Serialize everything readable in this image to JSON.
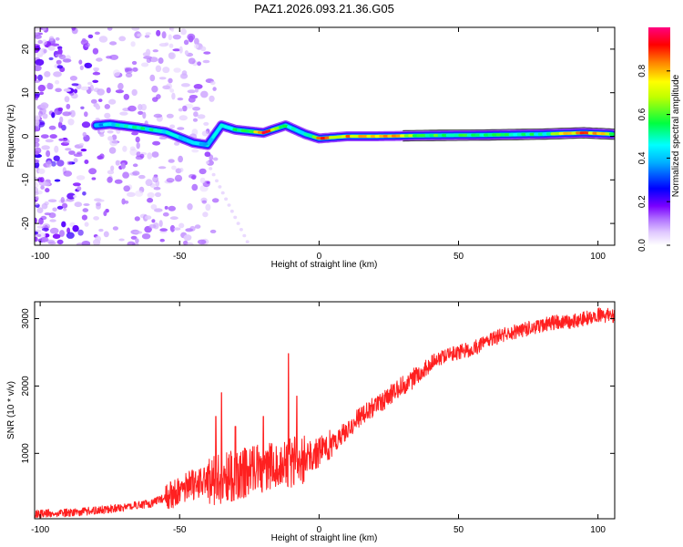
{
  "title": "PAZ1.2026.093.21.36.G05",
  "chart_data": [
    {
      "type": "heatmap",
      "name": "spectrogram",
      "xlabel": "Height of straight line (km)",
      "ylabel": "Frequency (Hz)",
      "xlim": [
        -102,
        106
      ],
      "ylim": [
        -25,
        25
      ],
      "xticks": [
        -100,
        -50,
        0,
        50,
        100
      ],
      "yticks": [
        -20,
        -10,
        0,
        10,
        20
      ],
      "colorbar": {
        "label": "Normalized spectral amplitude",
        "range": [
          0,
          1
        ],
        "ticks": [
          0.0,
          0.2,
          0.4,
          0.6,
          0.8
        ],
        "colors": [
          "#ffffff",
          "#c080ff",
          "#7a00ff",
          "#0000ff",
          "#00ffff",
          "#00ff00",
          "#ffff00",
          "#ff8000",
          "#ff0000",
          "#ff00a0"
        ]
      },
      "ridge": {
        "description_points": [
          {
            "x": -80,
            "f": 2.5,
            "amp": 0.35
          },
          {
            "x": -75,
            "f": 2.8,
            "amp": 0.45
          },
          {
            "x": -65,
            "f": 2.0,
            "amp": 0.5
          },
          {
            "x": -55,
            "f": 1.0,
            "amp": 0.45
          },
          {
            "x": -45,
            "f": -1.5,
            "amp": 0.4
          },
          {
            "x": -40,
            "f": -2.0,
            "amp": 0.4
          },
          {
            "x": -35,
            "f": 2.5,
            "amp": 0.45
          },
          {
            "x": -30,
            "f": 1.5,
            "amp": 0.5
          },
          {
            "x": -20,
            "f": 0.8,
            "amp": 0.85
          },
          {
            "x": -12,
            "f": 2.5,
            "amp": 0.5
          },
          {
            "x": -5,
            "f": 0.5,
            "amp": 0.45
          },
          {
            "x": 0,
            "f": -0.5,
            "amp": 0.8
          },
          {
            "x": 10,
            "f": 0.0,
            "amp": 0.8
          },
          {
            "x": 20,
            "f": 0.0,
            "amp": 0.85
          },
          {
            "x": 40,
            "f": 0.2,
            "amp": 0.55
          },
          {
            "x": 60,
            "f": 0.3,
            "amp": 0.55
          },
          {
            "x": 80,
            "f": 0.5,
            "amp": 0.5
          },
          {
            "x": 95,
            "f": 0.8,
            "amp": 0.9
          },
          {
            "x": 105,
            "f": 0.5,
            "amp": 0.6
          }
        ]
      }
    },
    {
      "type": "line",
      "name": "snr",
      "xlabel": "Height of straight line (km)",
      "ylabel": "SNR (10 * v/v)",
      "xlim": [
        -102,
        106
      ],
      "ylim": [
        30,
        3250
      ],
      "xticks": [
        -100,
        -50,
        0,
        50,
        100
      ],
      "yticks": [
        1000,
        2000,
        3000
      ],
      "color": "#ff2020",
      "series": [
        {
          "name": "SNR",
          "x": [
            -102,
            -90,
            -80,
            -70,
            -60,
            -55,
            -50,
            -45,
            -40,
            -35,
            -30,
            -25,
            -20,
            -15,
            -10,
            -5,
            0,
            5,
            10,
            15,
            20,
            25,
            30,
            35,
            40,
            45,
            50,
            55,
            60,
            65,
            70,
            75,
            80,
            85,
            90,
            95,
            100,
            106
          ],
          "y": [
            100,
            120,
            150,
            200,
            260,
            350,
            450,
            550,
            650,
            700,
            750,
            800,
            850,
            900,
            950,
            1000,
            1050,
            1150,
            1350,
            1550,
            1700,
            1850,
            2000,
            2150,
            2350,
            2450,
            2500,
            2550,
            2650,
            2750,
            2800,
            2850,
            2900,
            2950,
            2950,
            3000,
            3050,
            3050
          ],
          "noise_envelope": [
            {
              "x": -37,
              "peak": 1550
            },
            {
              "x": -35,
              "peak": 1900
            },
            {
              "x": -30,
              "peak": 1400
            },
            {
              "x": -20,
              "peak": 1550
            },
            {
              "x": -11,
              "peak": 2480
            },
            {
              "x": -8,
              "peak": 1850
            }
          ]
        }
      ]
    }
  ]
}
